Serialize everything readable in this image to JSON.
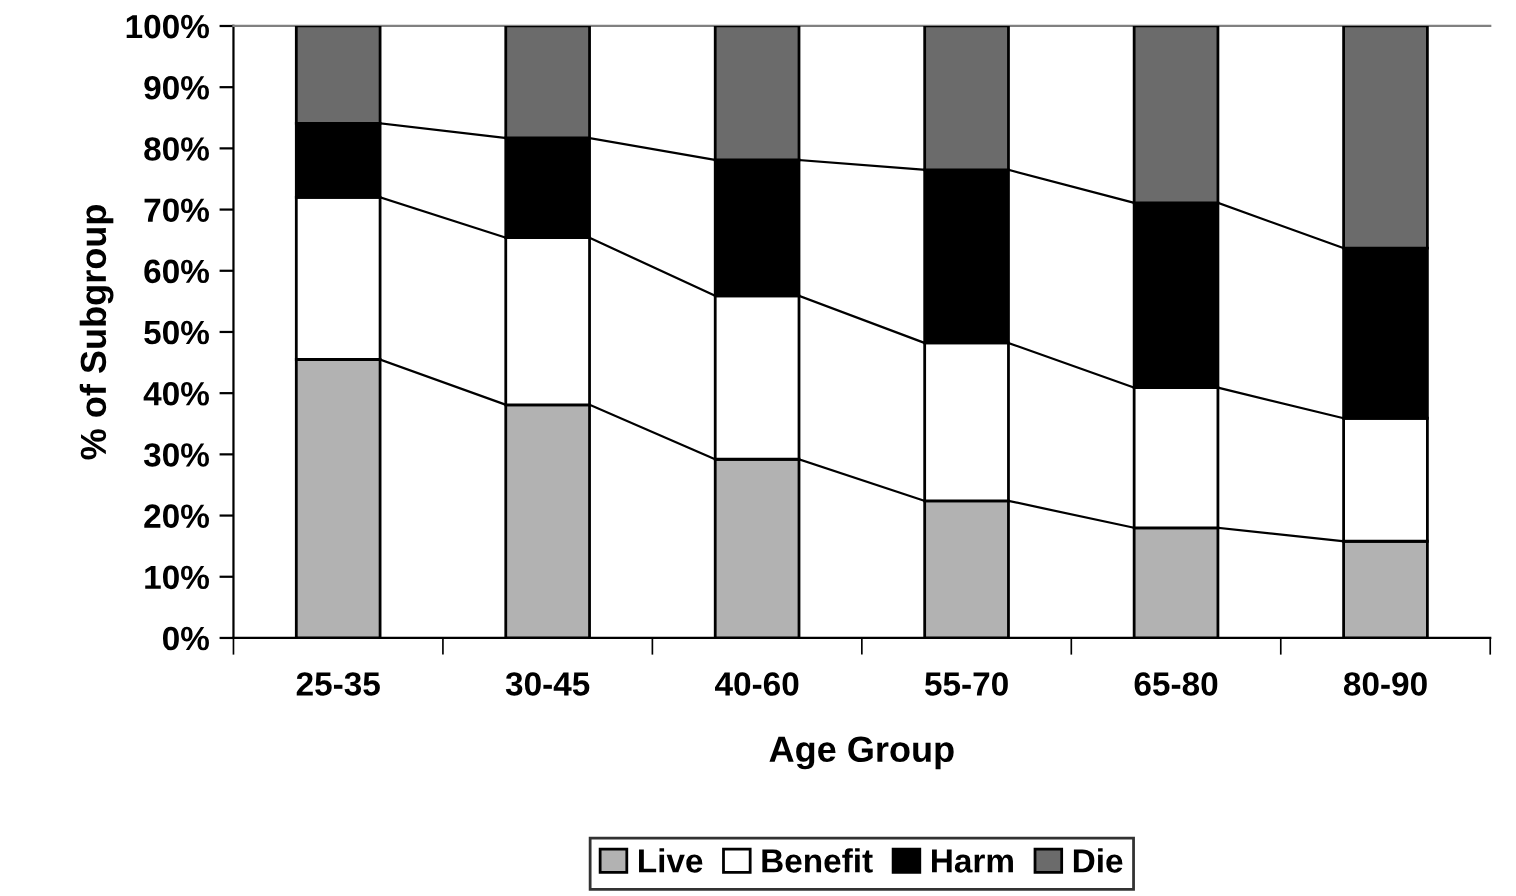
{
  "chart_data": {
    "type": "bar",
    "stacked": true,
    "xlabel": "Age Group",
    "ylabel": "% of Subgroup",
    "categories": [
      "25-35",
      "30-45",
      "40-60",
      "55-70",
      "65-80",
      "80-90"
    ],
    "series": [
      {
        "name": "Live",
        "color": "#b2b2b2",
        "values": [
          45.5,
          38.1,
          29.2,
          22.4,
          18.0,
          15.8
        ]
      },
      {
        "name": "Benefit",
        "color": "#ffffff",
        "values": [
          26.5,
          27.3,
          26.7,
          25.8,
          22.9,
          20.1
        ]
      },
      {
        "name": "Harm",
        "color": "#000000",
        "values": [
          12.1,
          16.3,
          22.2,
          28.3,
          30.2,
          27.8
        ]
      },
      {
        "name": "Die",
        "color": "#6b6b6b",
        "values": [
          15.9,
          18.3,
          21.9,
          23.5,
          28.9,
          36.3
        ]
      }
    ],
    "ylim": [
      0,
      100
    ],
    "yticks": [
      {
        "value": 0,
        "label": "0%"
      },
      {
        "value": 10,
        "label": "10%"
      },
      {
        "value": 20,
        "label": "20%"
      },
      {
        "value": 30,
        "label": "30%"
      },
      {
        "value": 40,
        "label": "40%"
      },
      {
        "value": 50,
        "label": "50%"
      },
      {
        "value": 60,
        "label": "60%"
      },
      {
        "value": 70,
        "label": "70%"
      },
      {
        "value": 80,
        "label": "80%"
      },
      {
        "value": 90,
        "label": "90%"
      },
      {
        "value": 100,
        "label": "100%"
      }
    ],
    "grid": false,
    "legend": "bottom"
  }
}
